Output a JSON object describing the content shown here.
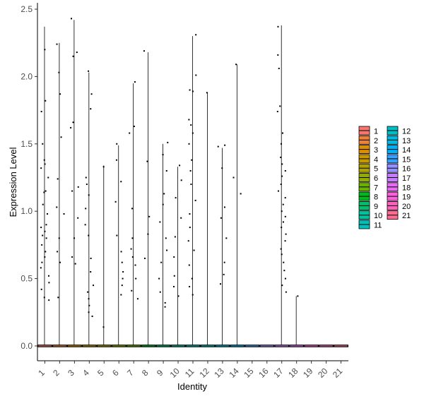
{
  "chart_data": {
    "type": "violin",
    "subtype": "violin-with-jitter",
    "xlabel": "Identity",
    "ylabel": "Expression Level",
    "ylim": [
      -0.1,
      2.52
    ],
    "y_ticks": [
      0.0,
      0.5,
      1.0,
      1.5,
      2.0,
      2.5
    ],
    "y_tick_labels": [
      "0.0",
      "0.5",
      "1.0",
      "1.5",
      "2.0",
      "2.5"
    ],
    "categories": [
      "1",
      "2",
      "3",
      "4",
      "5",
      "6",
      "7",
      "8",
      "9",
      "10",
      "11",
      "12",
      "13",
      "14",
      "15",
      "16",
      "17",
      "18",
      "19",
      "20",
      "21"
    ],
    "legend_placement": "right",
    "legend_columns": 2,
    "grid": false,
    "colors": [
      "#F8766D",
      "#EC8239",
      "#DB8E00",
      "#C79800",
      "#AFA100",
      "#93AA00",
      "#6BB100",
      "#00B81F",
      "#00BE6C",
      "#00C19C",
      "#00C0BB",
      "#00BFC4",
      "#00BAE0",
      "#00B0F6",
      "#35A2FF",
      "#9590FF",
      "#C77CFF",
      "#E76BF3",
      "#FA62DB",
      "#FF62BC",
      "#FF6C91"
    ],
    "series": [
      {
        "name": "1",
        "max": 2.37,
        "points": [
          2.2,
          1.82,
          1.74,
          1.5,
          1.38,
          1.35,
          1.32,
          1.25,
          1.15,
          1.14,
          1.05,
          0.98,
          0.9,
          0.88,
          0.85,
          0.82,
          0.8,
          0.75,
          0.7,
          0.66,
          0.62,
          0.58,
          0.52,
          0.47,
          0.42,
          0.36,
          0.34
        ]
      },
      {
        "name": "2",
        "max": 2.25,
        "points": [
          2.24,
          2.03,
          1.87,
          1.55,
          1.24,
          1.03,
          0.98,
          0.8,
          0.7,
          0.62,
          0.36
        ]
      },
      {
        "name": "3",
        "max": 2.42,
        "points": [
          2.43,
          2.18,
          2.15,
          1.66,
          1.62,
          1.18,
          1.15,
          0.95,
          0.8,
          0.66,
          0.61
        ]
      },
      {
        "name": "4",
        "max": 2.03,
        "points": [
          2.04,
          1.87,
          1.76,
          1.25,
          1.2,
          1.12,
          1.02,
          0.9,
          0.82,
          0.65,
          0.55,
          0.45,
          0.4,
          0.35,
          0.3,
          0.25,
          0.22
        ]
      },
      {
        "name": "5",
        "max": 1.34,
        "points": [
          1.33,
          0.14
        ]
      },
      {
        "name": "6",
        "max": 1.49,
        "points": [
          1.5,
          1.38,
          1.22,
          1.07,
          0.82,
          0.7,
          0.62,
          0.55,
          0.5,
          0.45,
          0.38
        ]
      },
      {
        "name": "7",
        "max": 1.95,
        "points": [
          1.96,
          1.63,
          1.58,
          1.02,
          0.8,
          0.72,
          0.66,
          0.6,
          0.5,
          0.41,
          0.35
        ]
      },
      {
        "name": "8",
        "max": 2.18,
        "points": [
          2.19,
          1.37,
          0.96,
          0.83,
          0.65
        ]
      },
      {
        "name": "9",
        "max": 1.5,
        "points": [
          1.51,
          1.42,
          1.3,
          1.13,
          1.05,
          0.92,
          0.8,
          0.71,
          0.62,
          0.5,
          0.4,
          0.32,
          0.29
        ]
      },
      {
        "name": "10",
        "max": 1.33,
        "points": [
          1.34,
          1.23,
          1.1,
          0.95,
          0.81,
          0.66,
          0.52,
          0.44,
          0.37
        ]
      },
      {
        "name": "11",
        "max": 2.3,
        "points": [
          2.31,
          2.01,
          1.9,
          1.89,
          1.68,
          1.64,
          1.58,
          1.5,
          1.38,
          1.3,
          1.2,
          1.08,
          0.98,
          0.88,
          0.78,
          0.71,
          0.6,
          0.5,
          0.44,
          0.38
        ]
      },
      {
        "name": "12",
        "max": 1.88,
        "points": [
          1.88
        ]
      },
      {
        "name": "13",
        "max": 1.47,
        "points": [
          1.48,
          1.49,
          1.32,
          1.03,
          0.95,
          0.8,
          0.62,
          0.53,
          0.46
        ]
      },
      {
        "name": "14",
        "max": 2.09,
        "points": [
          2.09,
          1.25,
          1.13
        ]
      },
      {
        "name": "15",
        "max": 0,
        "points": []
      },
      {
        "name": "16",
        "max": 0,
        "points": []
      },
      {
        "name": "17",
        "max": 2.38,
        "points": [
          2.37,
          2.16,
          2.06,
          1.78,
          1.74,
          1.58,
          1.5,
          1.4,
          1.35,
          1.3,
          1.26,
          1.2,
          1.15,
          1.1,
          1.05,
          1.0,
          0.96,
          0.92,
          0.88,
          0.83,
          0.78,
          0.72,
          0.68,
          0.62,
          0.56,
          0.5,
          0.45,
          0.4
        ]
      },
      {
        "name": "18",
        "max": 0.37,
        "points": [
          0.37
        ]
      },
      {
        "name": "19",
        "max": 0,
        "points": []
      },
      {
        "name": "20",
        "max": 0,
        "points": []
      },
      {
        "name": "21",
        "max": 0,
        "points": []
      }
    ]
  }
}
